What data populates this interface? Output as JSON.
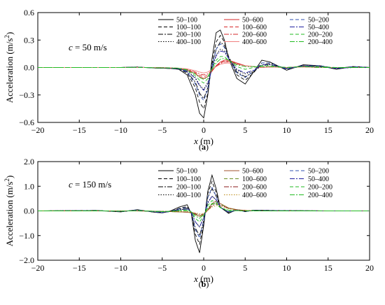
{
  "chart_data": [
    {
      "type": "line",
      "panel_label": "(a)",
      "annotation": "c = 50 m/s",
      "annotation_parts": {
        "var": "c",
        "rest": " = 50 m/s"
      },
      "xlabel": "x (m)",
      "xlabel_parts": {
        "var": "x",
        "rest": " (m)"
      },
      "ylabel": "Acceleration (m/s²)",
      "ylabel_parts": {
        "main": "Acceleration (m/s",
        "sup": "2",
        "close": ")"
      },
      "xlim": [
        -20,
        20
      ],
      "ylim": [
        -0.6,
        0.6
      ],
      "xticks": [
        "-20",
        "-15",
        "-10",
        "-5",
        "0",
        "5",
        "10",
        "15",
        "20"
      ],
      "yticks": [
        "-0.6",
        "-0.3",
        "0.0",
        "0.3",
        "0.6"
      ],
      "grid": false,
      "legend_position": "top-right",
      "x": [
        -20,
        -15,
        -10,
        -8,
        -6,
        -4,
        -3,
        -2,
        -1,
        -0.5,
        0,
        0.5,
        1,
        1.5,
        2,
        2.5,
        3,
        4,
        5,
        6,
        7,
        8,
        10,
        12,
        14,
        16,
        18,
        20
      ],
      "series": [
        {
          "name": "50–100",
          "color": "#000000",
          "dash": "",
          "values": [
            0,
            0,
            0,
            0.005,
            -0.005,
            -0.01,
            -0.02,
            -0.08,
            -0.3,
            -0.5,
            -0.55,
            -0.3,
            0.1,
            0.38,
            0.41,
            0.3,
            0.1,
            -0.12,
            -0.18,
            -0.05,
            0.08,
            0.06,
            -0.03,
            0.03,
            0.02,
            -0.02,
            0.01,
            0
          ]
        },
        {
          "name": "100–100",
          "color": "#000000",
          "dash": "5,3",
          "values": [
            0,
            0,
            0,
            0.005,
            -0.005,
            -0.01,
            -0.02,
            -0.06,
            -0.22,
            -0.38,
            -0.45,
            -0.28,
            0.05,
            0.28,
            0.35,
            0.28,
            0.12,
            -0.08,
            -0.14,
            -0.06,
            0.05,
            0.05,
            -0.02,
            0.02,
            0.02,
            -0.01,
            0.01,
            0
          ]
        },
        {
          "name": "200–100",
          "color": "#000000",
          "dash": "7,2,2,2",
          "values": [
            0,
            0,
            0,
            0.004,
            -0.004,
            -0.01,
            -0.015,
            -0.05,
            -0.16,
            -0.28,
            -0.34,
            -0.22,
            0.02,
            0.2,
            0.28,
            0.24,
            0.12,
            -0.05,
            -0.1,
            -0.05,
            0.03,
            0.04,
            -0.01,
            0.02,
            0.01,
            -0.01,
            0.01,
            0
          ]
        },
        {
          "name": "400–100",
          "color": "#000000",
          "dash": "1.5,2",
          "values": [
            0,
            0,
            0,
            0.003,
            -0.003,
            -0.008,
            -0.012,
            -0.04,
            -0.11,
            -0.19,
            -0.24,
            -0.16,
            0.0,
            0.14,
            0.2,
            0.18,
            0.1,
            -0.03,
            -0.07,
            -0.04,
            0.02,
            0.03,
            -0.01,
            0.01,
            0.01,
            -0.01,
            0,
            0
          ]
        },
        {
          "name": "50–600",
          "color": "#d62728",
          "dash": "",
          "values": [
            0,
            0,
            0,
            0,
            0,
            -0.005,
            -0.01,
            -0.03,
            -0.07,
            -0.1,
            -0.12,
            -0.1,
            -0.04,
            0.02,
            0.06,
            0.08,
            0.08,
            0.05,
            0.02,
            0.01,
            0.0,
            0.01,
            0,
            0.01,
            0,
            0,
            0,
            0
          ]
        },
        {
          "name": "100–600",
          "color": "#d62728",
          "dash": "5,3",
          "values": [
            0,
            0,
            0,
            0,
            0,
            -0.004,
            -0.009,
            -0.025,
            -0.06,
            -0.085,
            -0.1,
            -0.085,
            -0.035,
            0.02,
            0.05,
            0.07,
            0.07,
            0.045,
            0.02,
            0.01,
            0,
            0.01,
            0,
            0.01,
            0,
            0,
            0,
            0
          ]
        },
        {
          "name": "200–600",
          "color": "#d62728",
          "dash": "7,2,2,2",
          "values": [
            0,
            0,
            0,
            0,
            0,
            -0.004,
            -0.008,
            -0.02,
            -0.05,
            -0.07,
            -0.08,
            -0.07,
            -0.03,
            0.015,
            0.045,
            0.06,
            0.06,
            0.04,
            0.02,
            0.01,
            0,
            0.005,
            0,
            0.005,
            0,
            0,
            0,
            0
          ]
        },
        {
          "name": "400–600",
          "color": "#f08080",
          "dash": "",
          "values": [
            0,
            0,
            0,
            0,
            0,
            -0.003,
            -0.007,
            -0.015,
            -0.035,
            -0.05,
            -0.06,
            -0.05,
            -0.02,
            0.01,
            0.035,
            0.045,
            0.05,
            0.035,
            0.02,
            0.01,
            0,
            0.005,
            0,
            0.005,
            0,
            0,
            0,
            0
          ]
        },
        {
          "name": "50–200",
          "color": "#3050b0",
          "dash": "5,3",
          "values": [
            0,
            0,
            0,
            0.003,
            -0.004,
            -0.008,
            -0.015,
            -0.05,
            -0.18,
            -0.3,
            -0.36,
            -0.24,
            0.02,
            0.2,
            0.26,
            0.22,
            0.1,
            -0.06,
            -0.11,
            -0.04,
            0.05,
            0.05,
            -0.02,
            0.02,
            0.02,
            -0.01,
            0.01,
            0
          ]
        },
        {
          "name": "50–400",
          "color": "#1f1f9f",
          "dash": "7,2,2,2",
          "values": [
            0,
            0,
            0,
            0.002,
            -0.003,
            -0.006,
            -0.012,
            -0.04,
            -0.12,
            -0.2,
            -0.25,
            -0.18,
            -0.01,
            0.13,
            0.18,
            0.17,
            0.1,
            -0.02,
            -0.06,
            -0.03,
            0.03,
            0.03,
            -0.01,
            0.02,
            0.01,
            -0.01,
            0,
            0
          ]
        },
        {
          "name": "200–200",
          "color": "#22bb22",
          "dash": "5,3",
          "values": [
            0,
            0,
            0,
            0.002,
            -0.003,
            -0.005,
            -0.01,
            -0.03,
            -0.09,
            -0.14,
            -0.17,
            -0.12,
            -0.01,
            0.08,
            0.12,
            0.12,
            0.08,
            0.01,
            -0.02,
            0,
            0.02,
            0.02,
            0,
            0.01,
            0.01,
            0,
            0,
            0
          ]
        },
        {
          "name": "200–400",
          "color": "#22bb22",
          "dash": "7,2,2,2",
          "values": [
            0,
            0,
            0,
            0.002,
            -0.002,
            -0.004,
            -0.008,
            -0.025,
            -0.07,
            -0.11,
            -0.13,
            -0.1,
            -0.02,
            0.05,
            0.09,
            0.1,
            0.08,
            0.03,
            0.01,
            0.01,
            0.01,
            0.01,
            0,
            0.01,
            0,
            0,
            0,
            0
          ]
        }
      ]
    },
    {
      "type": "line",
      "panel_label": "(b)",
      "annotation": "c = 150 m/s",
      "annotation_parts": {
        "var": "c",
        "rest": " = 150 m/s"
      },
      "xlabel": "x (m)",
      "xlabel_parts": {
        "var": "x",
        "rest": " (m)"
      },
      "ylabel": "Acceleration (m/s²)",
      "ylabel_parts": {
        "main": "Acceleration (m/s",
        "sup": "2",
        "close": ")"
      },
      "xlim": [
        -20,
        20
      ],
      "ylim": [
        -2.0,
        2.0
      ],
      "xticks": [
        "-20",
        "-15",
        "-10",
        "-5",
        "0",
        "5",
        "10",
        "15",
        "20"
      ],
      "yticks": [
        "-2.0",
        "-1.0",
        "0.0",
        "1.0",
        "2.0"
      ],
      "grid": false,
      "legend_position": "top-right",
      "x": [
        -20,
        -15,
        -13,
        -10,
        -8,
        -6,
        -5,
        -4,
        -3,
        -2,
        -1.5,
        -1,
        -0.5,
        0,
        0.5,
        1,
        1.5,
        2,
        3,
        4,
        5,
        6,
        8,
        10,
        15,
        20
      ],
      "series": [
        {
          "name": "50–100",
          "color": "#000000",
          "dash": "",
          "values": [
            0,
            0.01,
            0.02,
            -0.04,
            0.05,
            -0.05,
            -0.08,
            0.0,
            0.15,
            0.25,
            -0.1,
            -1.2,
            -1.7,
            -0.6,
            0.8,
            1.45,
            0.9,
            0.15,
            -0.1,
            0.05,
            -0.03,
            0.03,
            0.02,
            0.01,
            0,
            0
          ]
        },
        {
          "name": "100–100",
          "color": "#000000",
          "dash": "5,3",
          "values": [
            0,
            0.01,
            0.02,
            -0.03,
            0.04,
            -0.05,
            -0.08,
            -0.02,
            0.1,
            0.18,
            -0.08,
            -0.95,
            -1.35,
            -0.5,
            0.7,
            1.2,
            0.75,
            0.15,
            -0.08,
            0.04,
            -0.03,
            0.03,
            0.02,
            0.01,
            0,
            0
          ]
        },
        {
          "name": "200–100",
          "color": "#000000",
          "dash": "7,2,2,2",
          "values": [
            0,
            0.01,
            0.02,
            -0.03,
            0.03,
            -0.04,
            -0.07,
            -0.02,
            0.07,
            0.12,
            -0.06,
            -0.7,
            -1.0,
            -0.4,
            0.55,
            0.9,
            0.6,
            0.15,
            -0.05,
            0.03,
            -0.02,
            0.02,
            0.01,
            0.01,
            0,
            0
          ]
        },
        {
          "name": "400–100",
          "color": "#000000",
          "dash": "1.5,2",
          "values": [
            0,
            0.01,
            0.01,
            -0.02,
            0.02,
            -0.03,
            -0.05,
            -0.02,
            0.04,
            0.08,
            -0.04,
            -0.45,
            -0.65,
            -0.28,
            0.35,
            0.6,
            0.45,
            0.15,
            -0.03,
            0.02,
            -0.01,
            0.01,
            0.01,
            0,
            0,
            0
          ]
        },
        {
          "name": "50–600",
          "color": "#a0522d",
          "dash": "",
          "values": [
            0,
            0,
            0,
            0,
            0,
            -0.01,
            -0.02,
            -0.03,
            -0.04,
            -0.05,
            -0.08,
            -0.15,
            -0.22,
            -0.18,
            0.05,
            0.3,
            0.4,
            0.3,
            0.12,
            0.05,
            0.02,
            0.01,
            0,
            0,
            0,
            0
          ]
        },
        {
          "name": "100–600",
          "color": "#6b8e23",
          "dash": "5,3",
          "values": [
            0,
            0,
            0,
            0,
            0,
            -0.01,
            -0.02,
            -0.03,
            -0.04,
            -0.05,
            -0.07,
            -0.13,
            -0.19,
            -0.16,
            0.04,
            0.26,
            0.35,
            0.28,
            0.11,
            0.04,
            0.02,
            0.01,
            0,
            0,
            0,
            0
          ]
        },
        {
          "name": "200–600",
          "color": "#8b1a1a",
          "dash": "7,2,2,2",
          "values": [
            0,
            0,
            0,
            0,
            0,
            -0.01,
            -0.015,
            -0.025,
            -0.035,
            -0.045,
            -0.06,
            -0.11,
            -0.16,
            -0.13,
            0.03,
            0.21,
            0.29,
            0.24,
            0.1,
            0.04,
            0.02,
            0.01,
            0,
            0,
            0,
            0
          ]
        },
        {
          "name": "400–600",
          "color": "#b8860b",
          "dash": "1.5,2",
          "values": [
            0,
            0,
            0,
            0,
            0,
            -0.01,
            -0.01,
            -0.02,
            -0.03,
            -0.035,
            -0.05,
            -0.08,
            -0.12,
            -0.1,
            0.02,
            0.16,
            0.22,
            0.2,
            0.09,
            0.04,
            0.02,
            0.01,
            0,
            0,
            0,
            0
          ]
        },
        {
          "name": "50–200",
          "color": "#3050b0",
          "dash": "5,3",
          "values": [
            0,
            0.01,
            0.02,
            -0.03,
            0.04,
            -0.04,
            -0.07,
            -0.02,
            0.08,
            0.14,
            -0.06,
            -0.75,
            -1.1,
            -0.42,
            0.55,
            0.95,
            0.6,
            0.14,
            -0.06,
            0.03,
            -0.02,
            0.02,
            0.01,
            0.01,
            0,
            0
          ]
        },
        {
          "name": "50–400",
          "color": "#1f1f9f",
          "dash": "7,2,2,2",
          "values": [
            0,
            0,
            0.01,
            -0.02,
            0.02,
            -0.03,
            -0.05,
            -0.02,
            0.04,
            0.07,
            -0.05,
            -0.45,
            -0.65,
            -0.28,
            0.32,
            0.6,
            0.45,
            0.14,
            -0.03,
            0.02,
            -0.01,
            0.01,
            0.01,
            0,
            0,
            0
          ]
        },
        {
          "name": "200–200",
          "color": "#22bb22",
          "dash": "5,3",
          "values": [
            0,
            0,
            0.01,
            -0.01,
            0.01,
            -0.02,
            -0.03,
            -0.02,
            0.02,
            0.04,
            -0.04,
            -0.3,
            -0.45,
            -0.2,
            0.22,
            0.42,
            0.35,
            0.13,
            -0.01,
            0.01,
            0,
            0.01,
            0,
            0,
            0,
            0
          ]
        },
        {
          "name": "200–400",
          "color": "#22bb22",
          "dash": "7,2,2,2",
          "values": [
            0,
            0,
            0,
            -0.01,
            0.01,
            -0.01,
            -0.02,
            -0.02,
            0.0,
            0.01,
            -0.03,
            -0.2,
            -0.3,
            -0.15,
            0.12,
            0.3,
            0.28,
            0.13,
            0.03,
            0.01,
            0,
            0,
            0,
            0,
            0,
            0
          ]
        }
      ]
    }
  ]
}
